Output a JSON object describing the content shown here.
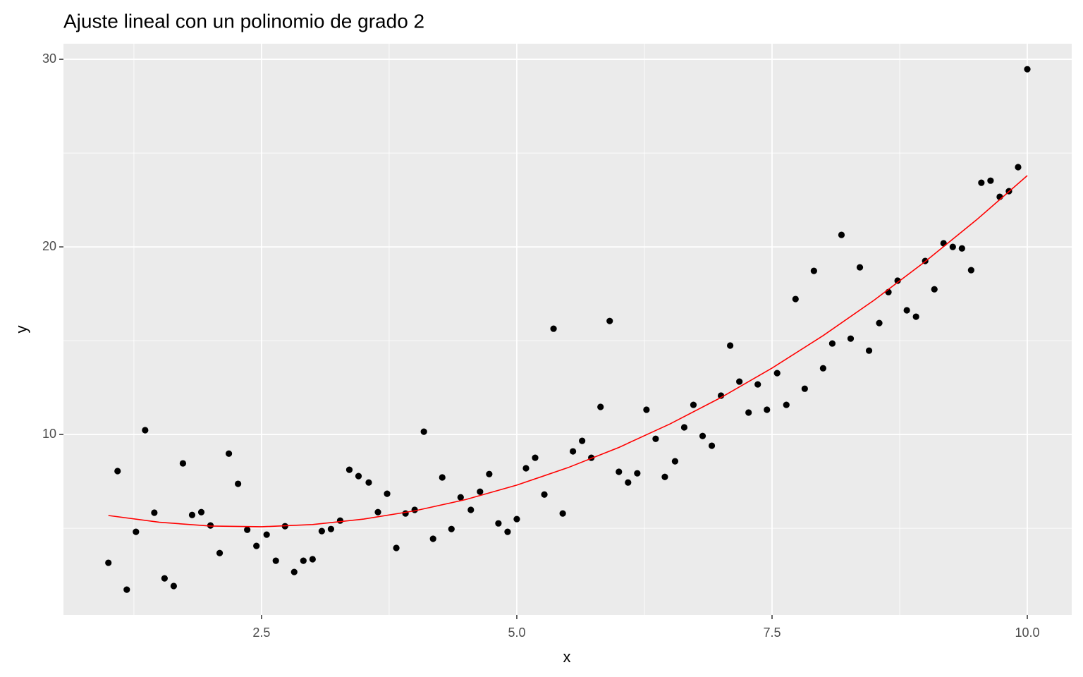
{
  "chart_data": {
    "type": "scatter",
    "title": "Ajuste lineal con un polinomio  de grado 2",
    "x_label": "x",
    "y_label": "y",
    "x": [
      1.0,
      1.09,
      1.18,
      1.27,
      1.36,
      1.45,
      1.55,
      1.64,
      1.73,
      1.82,
      1.91,
      2.0,
      2.09,
      2.18,
      2.27,
      2.36,
      2.45,
      2.55,
      2.64,
      2.73,
      2.82,
      2.91,
      3.0,
      3.09,
      3.18,
      3.27,
      3.36,
      3.45,
      3.55,
      3.64,
      3.73,
      3.82,
      3.91,
      4.0,
      4.09,
      4.18,
      4.27,
      4.36,
      4.45,
      4.55,
      4.64,
      4.73,
      4.82,
      4.91,
      5.0,
      5.09,
      5.18,
      5.27,
      5.36,
      5.45,
      5.55,
      5.64,
      5.73,
      5.82,
      5.91,
      6.0,
      6.09,
      6.18,
      6.27,
      6.36,
      6.45,
      6.55,
      6.64,
      6.73,
      6.82,
      6.91,
      7.0,
      7.09,
      7.18,
      7.27,
      7.36,
      7.45,
      7.55,
      7.64,
      7.73,
      7.82,
      7.91,
      8.0,
      8.09,
      8.18,
      8.27,
      8.36,
      8.45,
      8.55,
      8.64,
      8.73,
      8.82,
      8.91,
      9.0,
      9.09,
      9.18,
      9.27,
      9.36,
      9.45,
      9.55,
      9.64,
      9.73,
      9.82,
      9.91,
      10.0
    ],
    "values": [
      3.16,
      8.05,
      1.73,
      4.81,
      10.23,
      5.83,
      2.33,
      1.92,
      8.46,
      5.71,
      5.86,
      5.15,
      3.68,
      8.98,
      7.37,
      4.92,
      4.06,
      4.66,
      3.27,
      5.11,
      2.67,
      3.27,
      3.35,
      4.85,
      4.96,
      5.41,
      8.12,
      7.78,
      7.44,
      5.86,
      6.84,
      3.95,
      5.79,
      5.98,
      10.15,
      4.44,
      7.71,
      4.96,
      6.65,
      5.98,
      6.95,
      7.89,
      5.26,
      4.81,
      5.49,
      8.2,
      8.76,
      6.8,
      15.64,
      5.79,
      9.1,
      9.66,
      8.76,
      11.47,
      16.05,
      8.01,
      7.44,
      7.93,
      11.32,
      9.77,
      7.74,
      8.57,
      10.38,
      11.58,
      9.92,
      9.4,
      12.07,
      14.74,
      12.82,
      11.17,
      12.67,
      11.32,
      13.27,
      11.58,
      17.22,
      12.44,
      18.72,
      13.53,
      14.85,
      20.64,
      15.11,
      18.91,
      14.47,
      15.94,
      17.59,
      18.2,
      16.62,
      16.28,
      19.25,
      17.74,
      20.19,
      20.0,
      19.92,
      18.76,
      23.42,
      23.53,
      22.67,
      22.97,
      24.25,
      29.47
    ],
    "color": "#000000",
    "trend": {
      "type": "line",
      "color": "#ff0000",
      "x": [
        1,
        1.5,
        2,
        2.5,
        3,
        3.5,
        4,
        4.5,
        5,
        5.5,
        6,
        6.5,
        7,
        7.5,
        8,
        8.5,
        9,
        9.5,
        10
      ],
      "values": [
        5.68,
        5.32,
        5.12,
        5.08,
        5.2,
        5.49,
        5.93,
        6.53,
        7.3,
        8.23,
        9.31,
        10.56,
        11.97,
        13.54,
        15.27,
        17.16,
        19.22,
        21.43,
        23.8
      ]
    },
    "xlim": [
      0.56,
      10.435
    ],
    "ylim": [
      0.38,
      30.83
    ],
    "xticks": [
      2.5,
      {
        "value": 5,
        "label": "5.0"
      },
      7.5,
      {
        "value": 10,
        "label": "10.0"
      }
    ],
    "yticks": [
      10,
      20,
      30
    ],
    "grid": true
  }
}
